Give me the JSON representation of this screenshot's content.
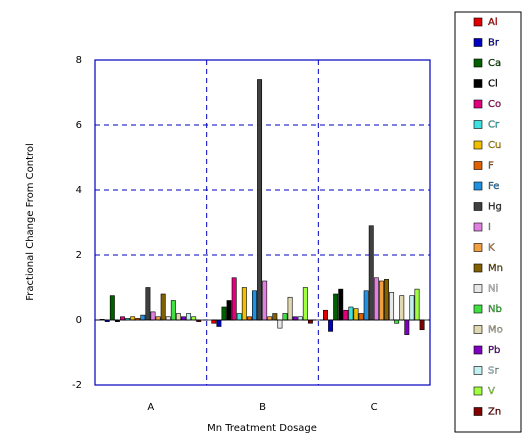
{
  "chart_data": {
    "type": "bar",
    "x_label": "Mn Treatment Dosage",
    "y_label": "Fractional Change From Control",
    "categories": [
      "A",
      "B",
      "C"
    ],
    "ylim": [
      -2,
      8
    ],
    "yticks": [
      -2,
      0,
      2,
      4,
      6,
      8
    ],
    "grid": true,
    "series": [
      {
        "name": "Al",
        "color": "#e00000",
        "values": [
          0.02,
          -0.1,
          0.3
        ]
      },
      {
        "name": "Br",
        "color": "#0000c0",
        "values": [
          -0.05,
          -0.2,
          -0.35
        ]
      },
      {
        "name": "Ca",
        "color": "#006000",
        "values": [
          0.75,
          0.4,
          0.8
        ]
      },
      {
        "name": "Cl",
        "color": "#000000",
        "values": [
          -0.05,
          0.6,
          0.95
        ]
      },
      {
        "name": "Co",
        "color": "#e0007a",
        "values": [
          0.1,
          1.3,
          0.3
        ]
      },
      {
        "name": "Cr",
        "color": "#40e0e0",
        "values": [
          0.05,
          0.2,
          0.4
        ]
      },
      {
        "name": "Cu",
        "color": "#f0c000",
        "values": [
          0.1,
          1.0,
          0.35
        ]
      },
      {
        "name": "F",
        "color": "#e06000",
        "values": [
          0.05,
          0.1,
          0.2
        ]
      },
      {
        "name": "Fe",
        "color": "#2090e0",
        "values": [
          0.15,
          0.9,
          0.9
        ]
      },
      {
        "name": "Hg",
        "color": "#404040",
        "values": [
          1.0,
          7.4,
          2.9
        ]
      },
      {
        "name": "I",
        "color": "#e080e0",
        "values": [
          0.25,
          1.2,
          1.3
        ]
      },
      {
        "name": "K",
        "color": "#f0a040",
        "values": [
          0.1,
          0.1,
          1.2
        ]
      },
      {
        "name": "Mn",
        "color": "#806000",
        "values": [
          0.8,
          0.2,
          1.25
        ]
      },
      {
        "name": "Ni",
        "color": "#e8e8e8",
        "values": [
          0.1,
          -0.25,
          0.85
        ]
      },
      {
        "name": "Nb",
        "color": "#40e040",
        "values": [
          0.6,
          0.2,
          -0.1
        ]
      },
      {
        "name": "Mo",
        "color": "#e0d8b0",
        "values": [
          0.2,
          0.7,
          0.75
        ]
      },
      {
        "name": "Pb",
        "color": "#8000c0",
        "values": [
          0.1,
          0.1,
          -0.45
        ]
      },
      {
        "name": "Sr",
        "color": "#c0f0f0",
        "values": [
          0.2,
          0.1,
          0.75
        ]
      },
      {
        "name": "V",
        "color": "#a0ff40",
        "values": [
          0.1,
          1.0,
          0.95
        ]
      },
      {
        "name": "Zn",
        "color": "#800000",
        "values": [
          -0.05,
          -0.1,
          -0.3
        ]
      }
    ]
  }
}
